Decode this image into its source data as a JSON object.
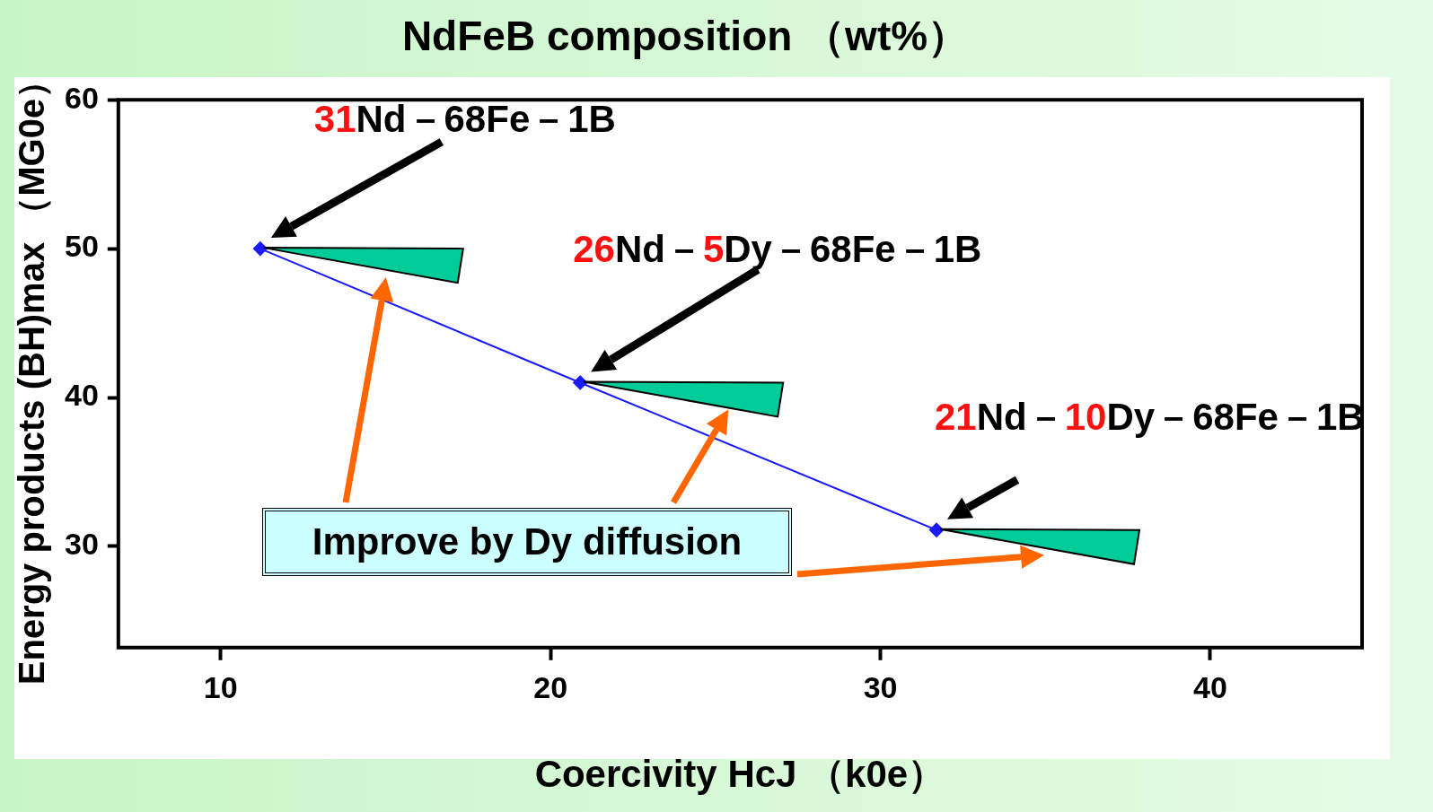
{
  "chart_data": {
    "type": "line",
    "title": "NdFeB composition （wt%）",
    "xlabel": "Coercivity HcJ （k0e）",
    "ylabel": "Energy products (BH)max （MG0e）",
    "x": [
      11.2,
      20.9,
      31.7
    ],
    "series": [
      {
        "color": "#1a1aff",
        "values": [
          50.0,
          41.0,
          31.1
        ]
      }
    ],
    "xlim": [
      6.9,
      44.6
    ],
    "xticks": [
      10,
      20,
      30,
      40
    ],
    "ylim": [
      23.2,
      60
    ],
    "yticks": [
      30,
      40,
      50,
      60
    ],
    "marker": "diamond",
    "legend": false,
    "grid": false,
    "annotations": [
      "31Nd－68Fe－1B",
      "26Nd－5Dy－68Fe－1B",
      "21Nd－10Dy－68Fe－1B",
      "Improve by Dy diffusion"
    ]
  }
}
